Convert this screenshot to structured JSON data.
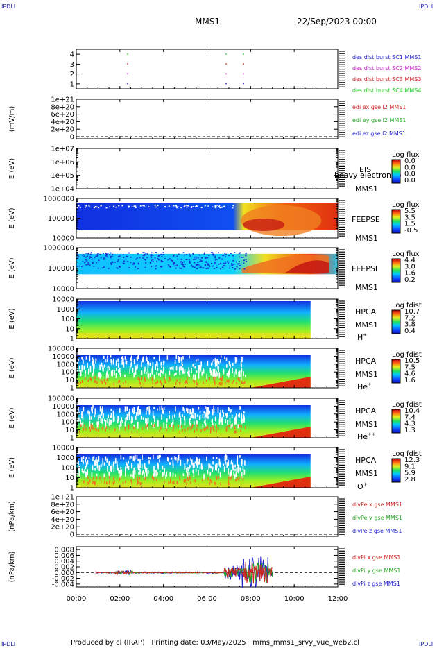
{
  "header": {
    "corner_tl": "IPDLI",
    "corner_tr": "IPDLI",
    "corner_bl": "IPDLI",
    "corner_br": "IPDLI",
    "title_left": "MMS1",
    "title_right": "22/Sep/2023 00:00"
  },
  "footer": {
    "produced": "Produced by cl (IRAP)",
    "printing": "Printing date: 03/May/2025",
    "file": "mms_mms1_srvy_vue_web2.cl"
  },
  "colors": {
    "spacecraft": [
      "#2222cc",
      "#cc22cc",
      "#cc2222",
      "#22cc22"
    ],
    "xyz": [
      "#cc2222",
      "#22aa22",
      "#2222cc"
    ]
  },
  "chart_data": [
    {
      "type": "scatter",
      "id": "burst",
      "ylim": [
        0.5,
        4.5
      ],
      "yticks": [
        "1",
        "2",
        "3",
        "4"
      ],
      "legend": [
        "des dist burst SC1 MMS1",
        "des dist burst SC2 MMS2",
        "des dist burst SC3 MMS3",
        "des dist burst SC4 MMS4"
      ],
      "series": [
        {
          "values": [
            [
              2.33,
              1
            ],
            [
              6.85,
              1
            ],
            [
              7.65,
              1
            ]
          ]
        },
        {
          "values": [
            [
              2.33,
              2
            ],
            [
              6.85,
              2
            ],
            [
              7.65,
              2
            ]
          ]
        },
        {
          "values": [
            [
              2.33,
              3
            ],
            [
              6.85,
              3
            ],
            [
              7.65,
              3
            ]
          ]
        },
        {
          "values": [
            [
              2.33,
              4
            ],
            [
              6.85,
              4
            ],
            [
              7.65,
              4
            ]
          ]
        }
      ]
    },
    {
      "type": "line",
      "id": "efield",
      "ylabel": "(mV/m)",
      "yticks": [
        "0",
        "2e+20",
        "4e+20",
        "6e+20",
        "8e+20",
        "1e+21"
      ],
      "legend": [
        "edi ex gse l2 MMS1",
        "edi ey gse l2 MMS1",
        "edi ez gse l2 MMS1"
      ]
    },
    {
      "type": "heatmap",
      "id": "eis",
      "ylabel": "E (eV)",
      "yticks": [
        "1e+04",
        "1e+05",
        "1e+06",
        "1e+07"
      ],
      "name": "EIS",
      "spacecraft": "MMS1",
      "overlay": "heavy electron to",
      "cb_title": "Log flux",
      "cb_ticks": [
        "0.0",
        "0.0",
        "0.0",
        "0.0"
      ]
    },
    {
      "type": "heatmap",
      "id": "feepse",
      "ylabel": "E (eV)",
      "yticks": [
        "10000",
        "100000",
        "1000000"
      ],
      "name": "FEEPSE",
      "spacecraft": "MMS1",
      "cb_title": "Log flux",
      "cb_ticks": [
        "5.5",
        "3.5",
        "1.5",
        "-0.5"
      ]
    },
    {
      "type": "heatmap",
      "id": "feepsi",
      "ylabel": "E (eV)",
      "yticks": [
        "10000",
        "100000",
        "1000000"
      ],
      "name": "FEEPSI",
      "spacecraft": "MMS1",
      "cb_title": "Log flux",
      "cb_ticks": [
        "4.4",
        "3.0",
        "1.6",
        "0.2"
      ]
    },
    {
      "type": "heatmap",
      "id": "hpca_h",
      "ylabel": "E (eV)",
      "yticks": [
        "1",
        "10",
        "100",
        "1000",
        "10000"
      ],
      "name": "HPCA",
      "spacecraft": "MMS1",
      "species": "H",
      "charge": "+",
      "cb_title": "Log fdist",
      "cb_ticks": [
        "10.7",
        "7.2",
        "3.8",
        "0.4"
      ]
    },
    {
      "type": "heatmap",
      "id": "hpca_he",
      "ylabel": "E (eV)",
      "yticks": [
        "1",
        "10",
        "100",
        "1000",
        "10000",
        "100000"
      ],
      "name": "HPCA",
      "spacecraft": "MMS1",
      "species": "He",
      "charge": "+",
      "cb_title": "Log fdist",
      "cb_ticks": [
        "10.5",
        "7.5",
        "4.6",
        "1.6"
      ]
    },
    {
      "type": "heatmap",
      "id": "hpca_hepp",
      "ylabel": "E (eV)",
      "yticks": [
        "1",
        "10",
        "100",
        "1000",
        "10000",
        "100000"
      ],
      "name": "HPCA",
      "spacecraft": "MMS1",
      "species": "He",
      "charge": "++",
      "cb_title": "Log fdist",
      "cb_ticks": [
        "10.4",
        "7.4",
        "4.3",
        "1.3"
      ]
    },
    {
      "type": "heatmap",
      "id": "hpca_o",
      "ylabel": "E (eV)",
      "yticks": [
        "1",
        "10",
        "100",
        "1000",
        "10000"
      ],
      "name": "HPCA",
      "spacecraft": "MMS1",
      "species": "O",
      "charge": "+",
      "cb_title": "Log fdist",
      "cb_ticks": [
        "12.3",
        "9.1",
        "5.9",
        "2.8"
      ]
    },
    {
      "type": "line",
      "id": "divpe",
      "ylabel": "(nPa/km)",
      "yticks": [
        "0",
        "2e+20",
        "4e+20",
        "6e+20",
        "8e+20",
        "1e+21"
      ],
      "legend": [
        "divPe x gse MMS1",
        "divPe y gse MMS1",
        "divPe z gse MMS1"
      ]
    },
    {
      "type": "line",
      "id": "divpi",
      "ylabel": "(nPa/km)",
      "ylim": [
        -0.005,
        0.009
      ],
      "yticks": [
        "-0.004",
        "-0.002",
        "0.000",
        "0.002",
        "0.004",
        "0.006",
        "0.008"
      ],
      "legend": [
        "divPi x gse MMS1",
        "divPi y gse MMS1",
        "divPi z gse MMS1"
      ]
    }
  ],
  "time_axis": {
    "xlim": [
      0,
      12
    ],
    "ticks": [
      "00:00",
      "02:00",
      "04:00",
      "06:00",
      "08:00",
      "10:00",
      "12:00"
    ]
  }
}
